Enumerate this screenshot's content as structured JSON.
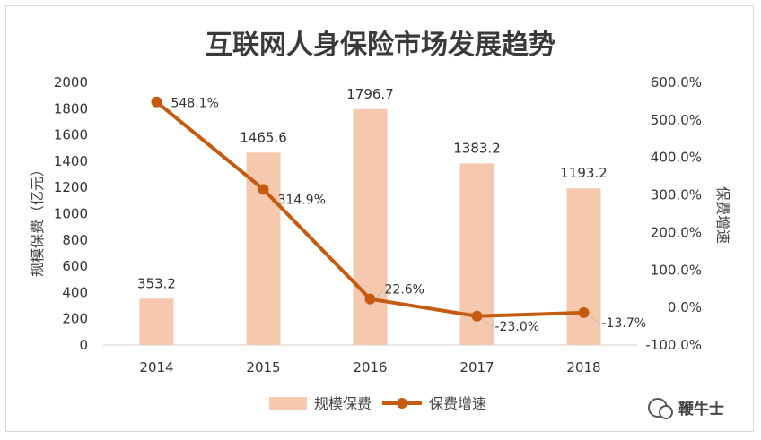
{
  "chart_data": {
    "type": "bar",
    "title": "互联网人身保险市场发展趋势",
    "categories": [
      "2014",
      "2015",
      "2016",
      "2017",
      "2018"
    ],
    "series": [
      {
        "name": "规模保费",
        "type": "bar",
        "axis": "left",
        "values": [
          353.2,
          1465.6,
          1796.7,
          1383.2,
          1193.2
        ],
        "labels": [
          "353.2",
          "1465.6",
          "1796.7",
          "1383.2",
          "1193.2"
        ],
        "color": "#f6c9ae"
      },
      {
        "name": "保费增速",
        "type": "line",
        "axis": "right",
        "values": [
          548.1,
          314.9,
          22.6,
          -23.0,
          -13.7
        ],
        "labels": [
          "548.1%",
          "314.9%",
          "22.6%",
          "-23.0%",
          "-13.7%"
        ],
        "color": "#c55a11"
      }
    ],
    "ylabel": "规模保费（亿元）",
    "ylim": [
      0,
      2000
    ],
    "yticks": [
      "0",
      "200",
      "400",
      "600",
      "800",
      "1000",
      "1200",
      "1400",
      "1600",
      "1800",
      "2000"
    ],
    "y2label": "保费增速",
    "y2lim": [
      -100,
      600
    ],
    "y2ticks": [
      "-100.0%",
      "0.0%",
      "100.0%",
      "200.0%",
      "300.0%",
      "400.0%",
      "500.0%",
      "600.0%"
    ],
    "grid": false,
    "legend": "bottom"
  },
  "watermark": "鞭牛士"
}
